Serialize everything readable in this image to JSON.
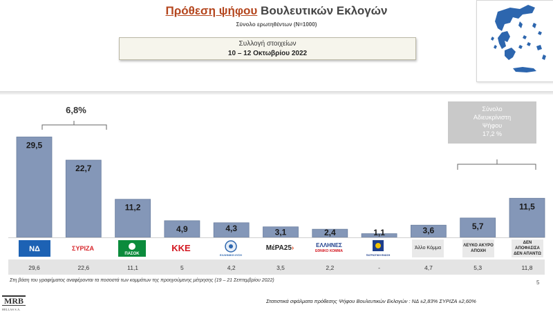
{
  "header": {
    "title_part1": "Πρόθεση ψήφου",
    "title_part2": " Βουλευτικών Εκλογών",
    "subtitle": "Σύνολο ερωτηθέντων (N=1000)"
  },
  "collection": {
    "label": "Συλλογή στοιχείων",
    "dates": "10 – 12 Οκτωβρίου 2022"
  },
  "gap_label": "6,8%",
  "undecided": {
    "line1": "Σύνολο",
    "line2": "Αδιευκρίνιστη",
    "line3": "Ψήφου",
    "value": "17,2 %"
  },
  "logos": {
    "nd": "ΝΔ",
    "syriza": "ΣΥΡΙΖΑ",
    "pasok": "ΠΑΣΟΚ",
    "kke": "ΚΚΕ",
    "elliniki_lysi": "ΕΛΛΗΝΙΚΗ ΛΥΣΗ",
    "mera25": "ΜέΡΑ25",
    "ellines": "ΕΛΛΗΝΕΣ",
    "ellines_sub": "ΕΘΝΙΚΟ ΚΟΜΜΑ",
    "patriotiki": "ΠΑΤΡΙΩΤΙΚΗ ΕΝΩΣΗ",
    "allo": "Άλλο Κόμμα",
    "lefko": "ΛΕΥΚΟ ΑΚΥΡΟ ΑΠΟΧΗ",
    "den_apofasisa": "ΔΕΝ ΑΠΟΦΑΣΙΣΑ ΔΕΝ ΑΠΑΝΤΩ"
  },
  "chart_data": {
    "type": "bar",
    "categories": [
      "ΝΔ",
      "ΣΥΡΙΖΑ",
      "ΠΑΣΟΚ",
      "ΚΚΕ",
      "ΕΛΛΗΝΙΚΗ ΛΥΣΗ",
      "ΜέΡΑ25",
      "ΕΛΛΗΝΕΣ",
      "ΠΑΤΡΙΩΤΙΚΗ ΕΝΩΣΗ",
      "Άλλο Κόμμα",
      "ΛΕΥΚΟ ΑΚΥΡΟ ΑΠΟΧΗ",
      "ΔΕΝ ΑΠΟΦΑΣΙΣΑ ΔΕΝ ΑΠΑΝΤΩ"
    ],
    "series": [
      {
        "values": [
          29.5,
          22.7,
          11.2,
          4.9,
          4.3,
          3.1,
          2.4,
          1.1,
          3.6,
          5.7,
          11.5
        ]
      }
    ],
    "value_labels": [
      "29,5",
      "22,7",
      "11,2",
      "4,9",
      "4,3",
      "3,1",
      "2,4",
      "1,1",
      "3,6",
      "5,7",
      "11,5"
    ],
    "previous_labels": [
      "29,6",
      "22,6",
      "11,1",
      "5",
      "4,2",
      "3,5",
      "2,2",
      "-",
      "4,7",
      "5,3",
      "11,8"
    ],
    "ylim": [
      0,
      30
    ],
    "grid": false,
    "bar_color": "#8497b8",
    "bar_border": "#6b7fa0"
  },
  "footnote": "Στη βάση του γραφήματος αναφέρονται τα ποσοστά των κομμάτων της προηγούμενης μέτρησης (19 – 21 Σεπτεμβρίου 2022)",
  "page_number": "5",
  "brand": {
    "name": "MRB",
    "sub": "HELLAS S.A."
  },
  "errors": "Στατιστικά σφάλματα πρόθεσης Ψήφου Βουλευτικών Εκλογών :  ΝΔ ±2,83% ΣΥΡΙΖΑ ±2,60%",
  "colors": {
    "title_accent": "#b4461e",
    "nd_blue": "#1d62b4",
    "syriza_red": "#d7262b",
    "pasok_green": "#0b8b3c",
    "kke_red": "#d3161f"
  }
}
